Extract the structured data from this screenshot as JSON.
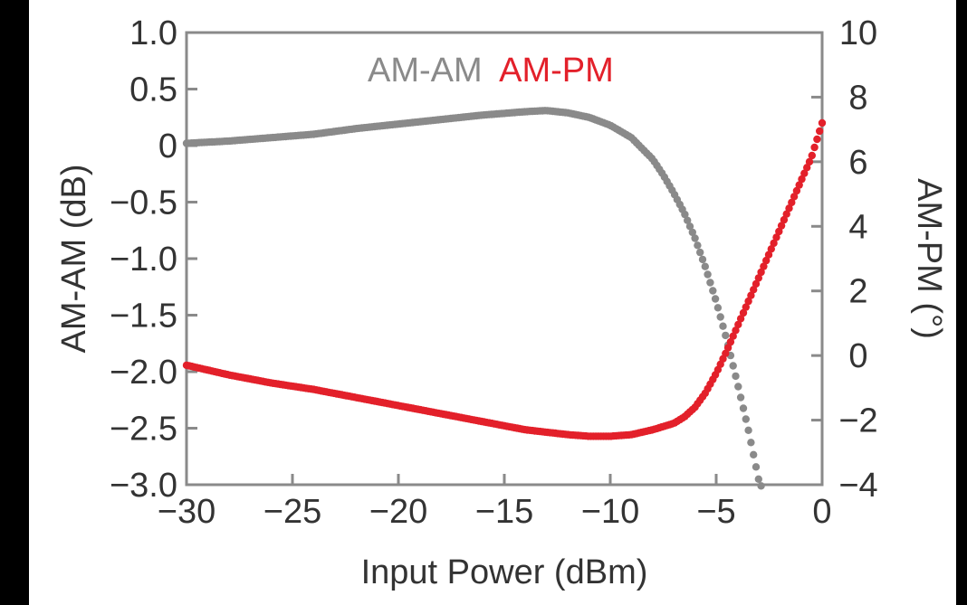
{
  "chart_data": {
    "type": "scatter",
    "xlabel": "Input Power (dBm)",
    "ylabel": "AM-AM (dB)",
    "y2label": "AM-PM (°)",
    "xlim": [
      -30,
      0
    ],
    "ylim": [
      -3.0,
      1.0
    ],
    "y2lim": [
      -4,
      10
    ],
    "x_ticks": [
      -30,
      -25,
      -20,
      -15,
      -10,
      -5,
      0
    ],
    "x_tick_labels": [
      "−30",
      "−25",
      "−20",
      "−15",
      "−10",
      "−5",
      "0"
    ],
    "y_ticks": [
      1.0,
      0.5,
      0,
      -0.5,
      -1.0,
      -1.5,
      -2.0,
      -2.5,
      -3.0
    ],
    "y_tick_labels": [
      "1.0",
      "0.5",
      "0",
      "−0.5",
      "−1.0",
      "−1.5",
      "−2.0",
      "−2.5",
      "−3.0"
    ],
    "y2_ticks": [
      10,
      8,
      6,
      4,
      2,
      0,
      -2,
      -4
    ],
    "y2_tick_labels": [
      "10",
      "8",
      "6",
      "4",
      "2",
      "0",
      "−2",
      "−4"
    ],
    "grid": false,
    "legend_position": "top-center",
    "series": [
      {
        "name": "AM-AM",
        "axis": "left",
        "color": "#8a8a8a",
        "x": [
          -30,
          -28,
          -26,
          -24,
          -22,
          -20,
          -18,
          -16,
          -14,
          -13,
          -12,
          -11,
          -10,
          -9,
          -8,
          -7.5,
          -7,
          -6.5,
          -6,
          -5.5,
          -5,
          -4.5,
          -4,
          -3.5,
          -3,
          -2.7
        ],
        "y": [
          0.02,
          0.04,
          0.07,
          0.1,
          0.15,
          0.19,
          0.23,
          0.27,
          0.3,
          0.31,
          0.29,
          0.25,
          0.18,
          0.07,
          -0.12,
          -0.26,
          -0.42,
          -0.6,
          -0.82,
          -1.08,
          -1.38,
          -1.72,
          -2.1,
          -2.5,
          -2.95,
          -3.1
        ]
      },
      {
        "name": "AM-PM",
        "axis": "right",
        "color": "#e3202a",
        "x": [
          -30,
          -28,
          -26,
          -24,
          -22,
          -20,
          -18,
          -16,
          -14,
          -12,
          -11,
          -10,
          -9,
          -8,
          -7,
          -6.5,
          -6,
          -5.5,
          -5,
          -4.5,
          -4,
          -3.5,
          -3,
          -2.5,
          -2,
          -1.5,
          -1,
          -0.5,
          0
        ],
        "y": [
          -0.3,
          -0.6,
          -0.85,
          -1.05,
          -1.3,
          -1.55,
          -1.8,
          -2.05,
          -2.3,
          -2.45,
          -2.5,
          -2.5,
          -2.45,
          -2.3,
          -2.1,
          -1.9,
          -1.6,
          -1.15,
          -0.55,
          0.15,
          0.9,
          1.65,
          2.4,
          3.15,
          3.9,
          4.65,
          5.4,
          6.15,
          7.2
        ]
      }
    ]
  }
}
